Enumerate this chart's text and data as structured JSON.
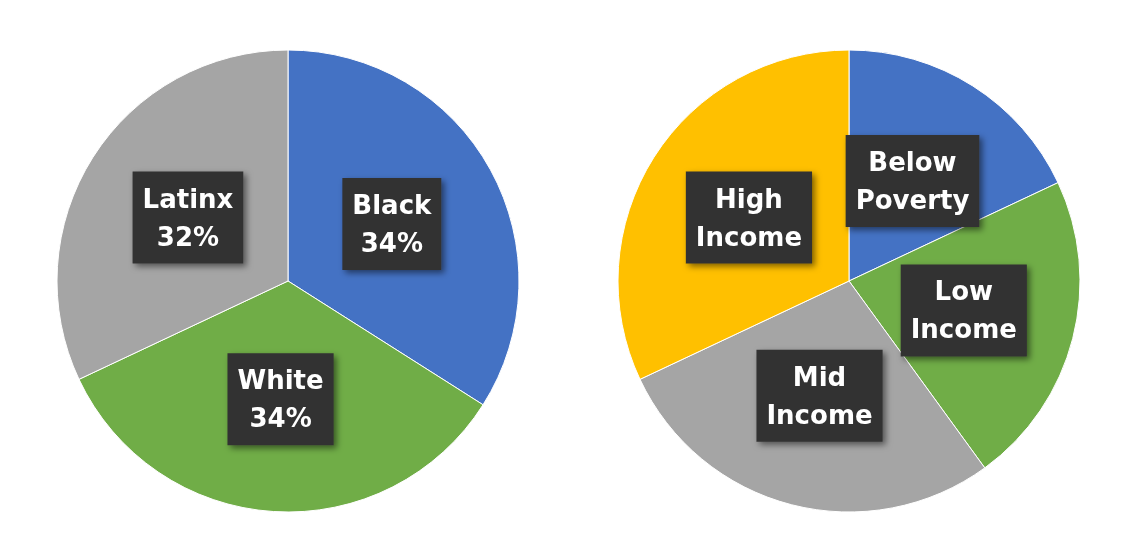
{
  "chart_data": [
    {
      "type": "pie",
      "categories": [
        "Black",
        "White",
        "Latinx"
      ],
      "values": [
        34,
        34,
        32
      ],
      "colors": [
        "#4472c4",
        "#70ad47",
        "#a5a5a5"
      ],
      "value_labels": [
        "34%",
        "34%",
        "32%"
      ]
    },
    {
      "type": "pie",
      "categories": [
        "Below Poverty",
        "Low Income",
        "Mid Income",
        "High Income"
      ],
      "values": [
        18,
        22,
        28,
        32
      ],
      "colors": [
        "#4472c4",
        "#70ad47",
        "#a5a5a5",
        "#ffc000"
      ]
    }
  ]
}
